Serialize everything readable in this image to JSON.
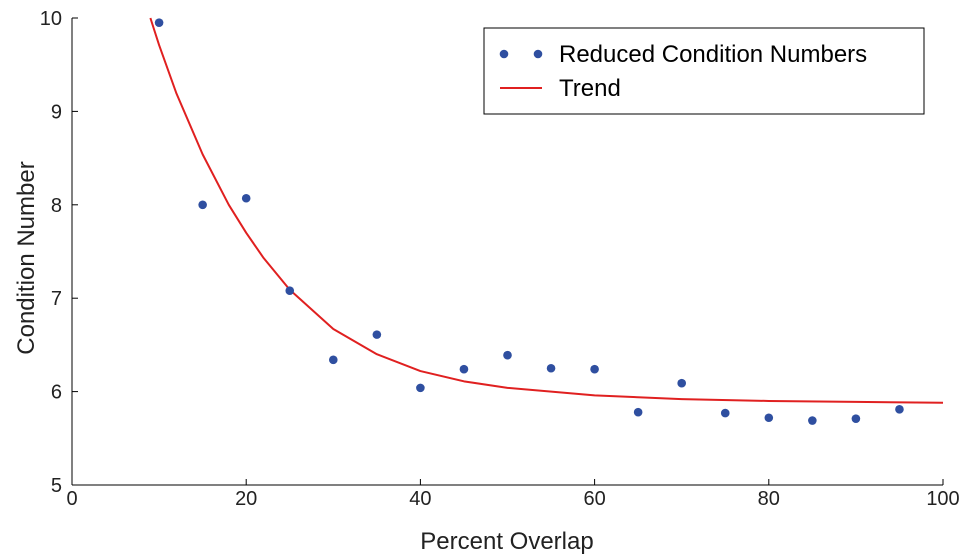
{
  "chart_data": {
    "type": "scatter",
    "xlabel": "Percent Overlap",
    "ylabel": "Condition Number",
    "xlim": [
      0,
      100
    ],
    "ylim": [
      5,
      10
    ],
    "x_ticks": [
      0,
      20,
      40,
      60,
      80,
      100
    ],
    "y_ticks": [
      5,
      6,
      7,
      8,
      9,
      10
    ],
    "grid": false,
    "legend_position": "top-right",
    "series": [
      {
        "name": "Reduced Condition Numbers",
        "kind": "scatter",
        "color": "#2f4fa0",
        "x": [
          10,
          15,
          20,
          25,
          30,
          35,
          40,
          45,
          50,
          55,
          60,
          65,
          70,
          75,
          80,
          85,
          90,
          95
        ],
        "y": [
          9.95,
          8.0,
          8.07,
          7.08,
          6.34,
          6.61,
          6.04,
          6.24,
          6.39,
          6.25,
          6.24,
          5.78,
          6.09,
          5.77,
          5.72,
          5.69,
          5.71,
          5.81
        ]
      },
      {
        "name": "Trend",
        "kind": "line",
        "color": "#e02020",
        "x": [
          9,
          10,
          12,
          15,
          18,
          20,
          22,
          25,
          30,
          35,
          40,
          45,
          50,
          60,
          70,
          80,
          90,
          100
        ],
        "y": [
          10.0,
          9.71,
          9.19,
          8.54,
          8.0,
          7.7,
          7.43,
          7.09,
          6.67,
          6.4,
          6.22,
          6.11,
          6.04,
          5.96,
          5.92,
          5.9,
          5.89,
          5.88
        ]
      }
    ]
  }
}
